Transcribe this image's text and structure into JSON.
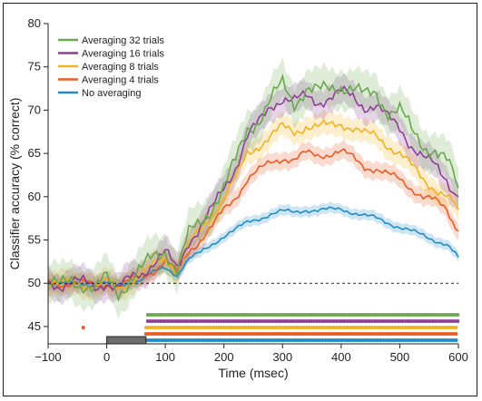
{
  "chart_data": {
    "type": "line",
    "title": "",
    "xlabel": "Time (msec)",
    "ylabel": "Classifier accuracy (% correct)",
    "xlim": [
      -100,
      600
    ],
    "ylim": [
      43,
      80
    ],
    "xticks": [
      -100,
      0,
      100,
      200,
      300,
      400,
      500,
      600
    ],
    "yticks": [
      45,
      50,
      55,
      60,
      65,
      70,
      75,
      80
    ],
    "tick_labels_x": [
      "−100",
      "0",
      "100",
      "200",
      "300",
      "400",
      "500",
      "600"
    ],
    "tick_labels_y": [
      "45",
      "50",
      "55",
      "60",
      "65",
      "70",
      "75",
      "80"
    ],
    "chance_level": 50,
    "stimulus_bar": {
      "x_start": 0,
      "x_end": 67,
      "color": "#6d6d6d"
    },
    "legend": {
      "placement": "top-left"
    },
    "series": [
      {
        "name": "Averaging 32 trials",
        "color": "#6aa84f",
        "band": 2.2,
        "x": [
          -100,
          -80,
          -60,
          -40,
          -20,
          0,
          20,
          40,
          60,
          80,
          100,
          120,
          140,
          160,
          180,
          200,
          220,
          240,
          260,
          280,
          300,
          320,
          340,
          360,
          380,
          400,
          420,
          440,
          460,
          480,
          500,
          520,
          540,
          560,
          580,
          600
        ],
        "values": [
          50,
          49.5,
          50.5,
          50,
          49.2,
          50.5,
          49,
          50.5,
          51.5,
          53,
          54,
          51.5,
          55.5,
          57,
          59,
          61,
          64,
          68,
          69,
          71,
          73,
          71,
          72.5,
          72,
          72.5,
          73,
          72.5,
          71.5,
          72,
          70,
          70,
          67.5,
          66,
          65.5,
          64,
          61
        ],
        "significance": {
          "start": 70,
          "end": 600
        }
      },
      {
        "name": "Averaging 16 trials",
        "color": "#8e3f96",
        "band": 1.6,
        "x": [
          -100,
          -80,
          -60,
          -40,
          -20,
          0,
          20,
          40,
          60,
          80,
          100,
          120,
          140,
          160,
          180,
          200,
          220,
          240,
          260,
          280,
          300,
          320,
          340,
          360,
          380,
          400,
          420,
          440,
          460,
          480,
          500,
          520,
          540,
          560,
          580,
          600
        ],
        "values": [
          50,
          49.8,
          50.3,
          50,
          49.5,
          50.2,
          49.3,
          50.5,
          51.2,
          52.5,
          53.5,
          51.5,
          55,
          56.5,
          58.5,
          61,
          63.5,
          67,
          68.5,
          70.5,
          71.5,
          71,
          71.5,
          71,
          71.5,
          72,
          71.5,
          70.5,
          70.5,
          69,
          68,
          66,
          64.5,
          63.5,
          62,
          60
        ],
        "significance": {
          "start": 70,
          "end": 600
        }
      },
      {
        "name": "Averaging 8 trials",
        "color": "#f4b120",
        "band": 1.3,
        "x": [
          -100,
          -80,
          -60,
          -40,
          -20,
          0,
          20,
          40,
          60,
          80,
          100,
          120,
          140,
          160,
          180,
          200,
          220,
          240,
          260,
          280,
          300,
          320,
          340,
          360,
          380,
          400,
          420,
          440,
          460,
          480,
          500,
          520,
          540,
          560,
          580,
          600
        ],
        "values": [
          50,
          49.8,
          50.2,
          50,
          49.6,
          50.1,
          49.5,
          50.3,
          51,
          52,
          53,
          51.5,
          54.5,
          56,
          58,
          60,
          62,
          65,
          66,
          67,
          68,
          67.5,
          68.2,
          68,
          68.2,
          68.5,
          68,
          67.2,
          67,
          66,
          65,
          63.5,
          62,
          61,
          60,
          58.5
        ],
        "significance": {
          "start": 67,
          "end": 600
        }
      },
      {
        "name": "Averaging 4 trials",
        "color": "#ea5b25",
        "band": 1.0,
        "x": [
          -100,
          -80,
          -60,
          -40,
          -20,
          0,
          20,
          40,
          60,
          80,
          100,
          120,
          140,
          160,
          180,
          200,
          220,
          240,
          260,
          280,
          300,
          320,
          340,
          360,
          380,
          400,
          420,
          440,
          460,
          480,
          500,
          520,
          540,
          560,
          580,
          600
        ],
        "values": [
          50,
          49.9,
          50.1,
          50,
          49.7,
          50,
          49.6,
          50.2,
          50.8,
          51.5,
          52.5,
          51.2,
          53.8,
          55,
          56.5,
          58.5,
          60,
          62,
          63,
          64,
          64.5,
          64.2,
          65,
          64.8,
          65,
          65.2,
          64.5,
          63.5,
          63.2,
          62.5,
          62,
          61,
          60,
          59.5,
          58.5,
          56
        ],
        "significance": {
          "start": 67,
          "end": 600
        }
      },
      {
        "name": "No averaging",
        "color": "#1f8cc8",
        "band": 0.6,
        "x": [
          -100,
          -80,
          -60,
          -40,
          -20,
          0,
          20,
          40,
          60,
          80,
          100,
          120,
          140,
          160,
          180,
          200,
          220,
          240,
          260,
          280,
          300,
          320,
          340,
          360,
          380,
          400,
          420,
          440,
          460,
          480,
          500,
          520,
          540,
          560,
          580,
          600
        ],
        "values": [
          50,
          49.9,
          50,
          50,
          49.8,
          50,
          49.7,
          50.1,
          50.5,
          51.2,
          51.8,
          51,
          52.8,
          53.5,
          54.5,
          55.5,
          56.2,
          57,
          57.5,
          58,
          58.3,
          58.2,
          58.5,
          58.4,
          58.5,
          58.6,
          58.2,
          57.8,
          57.5,
          57,
          56.5,
          56,
          55.5,
          55,
          54.5,
          53
        ],
        "significance": {
          "start": 63,
          "end": 600
        }
      }
    ],
    "extra_significant_points": [
      {
        "series": "Averaging 4 trials",
        "x": -40
      }
    ]
  }
}
